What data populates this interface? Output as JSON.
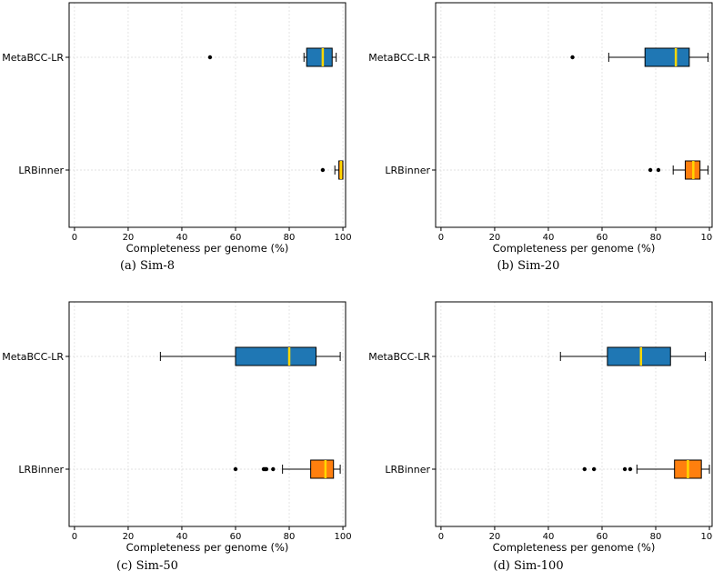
{
  "colors": {
    "metabcc": "#1f77b4",
    "lrbinner": "#ff7f0e",
    "median": "#ffd700",
    "grid": "#d9d9d9",
    "axis": "#000000",
    "outlier": "#000000"
  },
  "chart_data": [
    {
      "type": "box",
      "caption": "(a) Sim-8",
      "xlabel": "Completeness per genome (%)",
      "xlim": [
        -2,
        101
      ],
      "xticks": [
        0,
        20,
        40,
        60,
        80,
        100
      ],
      "xtick_labels": [
        "0",
        "20",
        "40",
        "60",
        "80",
        "100"
      ],
      "grid": true,
      "categories": [
        "MetaBCC-LR",
        "LRBinner"
      ],
      "series": [
        {
          "name": "MetaBCC-LR",
          "whisker_low": 85.5,
          "q1": 86.5,
          "median": 92.5,
          "q3": 96,
          "whisker_high": 97.5,
          "outliers": [
            50.5
          ]
        },
        {
          "name": "LRBinner",
          "whisker_low": 97,
          "q1": 98.5,
          "median": 99.3,
          "q3": 100,
          "whisker_high": 100,
          "outliers": [
            92.5
          ]
        }
      ]
    },
    {
      "type": "box",
      "caption": "(b) Sim-20",
      "xlabel": "Completeness per genome (%)",
      "xlim": [
        -2,
        101
      ],
      "xticks": [
        0,
        20,
        40,
        60,
        80,
        100
      ],
      "xtick_labels": [
        "0",
        "20",
        "40",
        "60",
        "80",
        "100"
      ],
      "grid": true,
      "categories": [
        "MetaBCC-LR",
        "LRBinner"
      ],
      "series": [
        {
          "name": "MetaBCC-LR",
          "whisker_low": 62.5,
          "q1": 76,
          "median": 87.5,
          "q3": 92.5,
          "whisker_high": 99.5,
          "outliers": [
            49
          ]
        },
        {
          "name": "LRBinner",
          "whisker_low": 86.5,
          "q1": 91,
          "median": 94,
          "q3": 96.5,
          "whisker_high": 99.5,
          "outliers": [
            78,
            81
          ]
        }
      ]
    },
    {
      "type": "box",
      "caption": "(c) Sim-50",
      "xlabel": "Completeness per genome (%)",
      "xlim": [
        -2,
        101
      ],
      "xticks": [
        0,
        20,
        40,
        60,
        80,
        100
      ],
      "xtick_labels": [
        "0",
        "20",
        "40",
        "60",
        "80",
        "100"
      ],
      "grid": true,
      "categories": [
        "MetaBCC-LR",
        "LRBinner"
      ],
      "series": [
        {
          "name": "MetaBCC-LR",
          "whisker_low": 32,
          "q1": 60,
          "median": 80,
          "q3": 90,
          "whisker_high": 99,
          "outliers": []
        },
        {
          "name": "LRBinner",
          "whisker_low": 77.5,
          "q1": 88,
          "median": 93.5,
          "q3": 96.5,
          "whisker_high": 99,
          "outliers": [
            60,
            70.5,
            71,
            71.5,
            74
          ]
        }
      ]
    },
    {
      "type": "box",
      "caption": "(d) Sim-100",
      "xlabel": "Completeness per genome (%)",
      "xlim": [
        -2,
        101
      ],
      "xticks": [
        0,
        20,
        40,
        60,
        80,
        100
      ],
      "xtick_labels": [
        "0",
        "20",
        "40",
        "60",
        "80",
        "100"
      ],
      "grid": true,
      "categories": [
        "MetaBCC-LR",
        "LRBinner"
      ],
      "series": [
        {
          "name": "MetaBCC-LR",
          "whisker_low": 44.5,
          "q1": 62,
          "median": 74.5,
          "q3": 85.5,
          "whisker_high": 98.5,
          "outliers": []
        },
        {
          "name": "LRBinner",
          "whisker_low": 73,
          "q1": 87,
          "median": 92,
          "q3": 97,
          "whisker_high": 100,
          "outliers": [
            53.5,
            57,
            68.5,
            70.5
          ]
        }
      ]
    }
  ]
}
